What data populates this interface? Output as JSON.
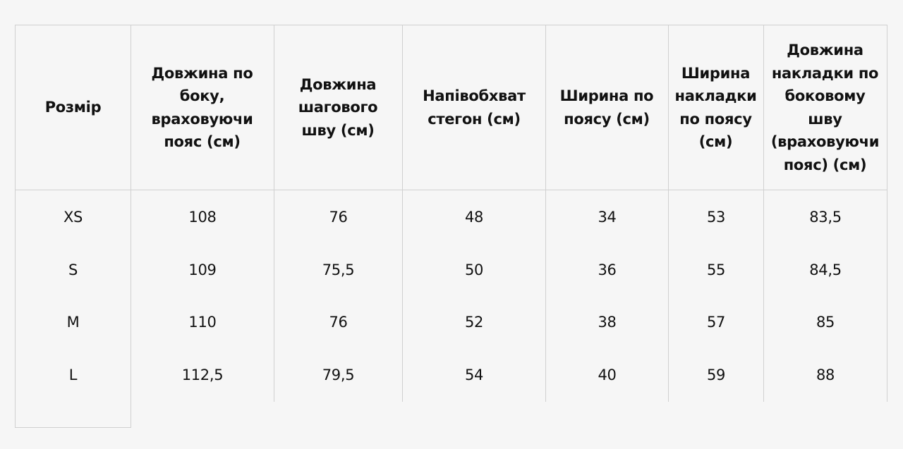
{
  "table": {
    "headers": [
      "Розмір",
      "Довжина по боку, враховуючи пояс (см)",
      "Довжина шагового шву (см)",
      "Напівобхват стегон (см)",
      "Ширина по поясу (см)",
      "Ширина накладки по поясу (см)",
      "Довжина накладки по боковому шву (враховуючи пояс) (см)"
    ],
    "rows": [
      [
        "XS",
        "108",
        "76",
        "48",
        "34",
        "53",
        "83,5"
      ],
      [
        "S",
        "109",
        "75,5",
        "50",
        "36",
        "55",
        "84,5"
      ],
      [
        "M",
        "110",
        "76",
        "52",
        "38",
        "57",
        "85"
      ],
      [
        "L",
        "112,5",
        "79,5",
        "54",
        "40",
        "59",
        "88"
      ]
    ]
  }
}
